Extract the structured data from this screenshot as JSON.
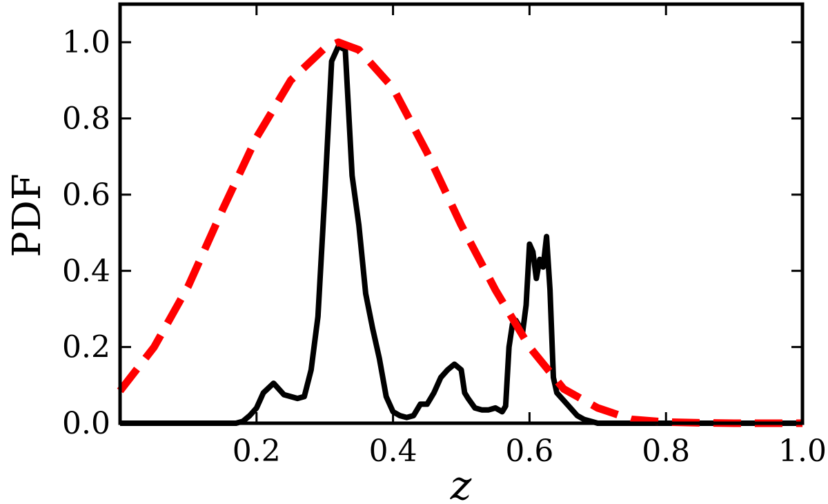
{
  "chart_data": {
    "type": "line",
    "title": "",
    "xlabel": "z",
    "ylabel": "PDF",
    "xlim": [
      0.0,
      1.0
    ],
    "ylim": [
      0.0,
      1.1
    ],
    "grid": false,
    "x_ticks": [
      0.2,
      0.4,
      0.6,
      0.8,
      1.0
    ],
    "x_tick_labels": [
      "0.2",
      "0.4",
      "0.6",
      "0.8",
      "1.0"
    ],
    "y_ticks": [
      0.0,
      0.2,
      0.4,
      0.6,
      0.8,
      1.0
    ],
    "y_tick_labels": [
      "0.0",
      "0.2",
      "0.4",
      "0.6",
      "0.8",
      "1.0"
    ],
    "series": [
      {
        "color": "#000000",
        "style": "solid",
        "x": [
          0.0,
          0.1,
          0.17,
          0.18,
          0.19,
          0.2,
          0.21,
          0.225,
          0.24,
          0.25,
          0.26,
          0.27,
          0.28,
          0.29,
          0.3,
          0.31,
          0.32,
          0.33,
          0.34,
          0.35,
          0.36,
          0.37,
          0.38,
          0.39,
          0.4,
          0.41,
          0.42,
          0.43,
          0.44,
          0.45,
          0.46,
          0.47,
          0.48,
          0.49,
          0.5,
          0.505,
          0.51,
          0.52,
          0.53,
          0.54,
          0.55,
          0.56,
          0.565,
          0.57,
          0.575,
          0.58,
          0.59,
          0.595,
          0.6,
          0.605,
          0.61,
          0.615,
          0.62,
          0.625,
          0.63,
          0.635,
          0.64,
          0.65,
          0.66,
          0.67,
          0.68,
          0.69,
          0.7,
          0.8,
          1.0
        ],
        "y": [
          0.0,
          0.0,
          0.0,
          0.005,
          0.02,
          0.04,
          0.08,
          0.105,
          0.075,
          0.07,
          0.065,
          0.07,
          0.14,
          0.28,
          0.6,
          0.95,
          0.99,
          0.98,
          0.65,
          0.52,
          0.34,
          0.25,
          0.17,
          0.07,
          0.03,
          0.02,
          0.015,
          0.02,
          0.05,
          0.05,
          0.08,
          0.12,
          0.14,
          0.155,
          0.14,
          0.08,
          0.065,
          0.04,
          0.035,
          0.035,
          0.04,
          0.03,
          0.045,
          0.2,
          0.26,
          0.27,
          0.24,
          0.31,
          0.47,
          0.45,
          0.38,
          0.43,
          0.41,
          0.49,
          0.35,
          0.12,
          0.08,
          0.06,
          0.04,
          0.02,
          0.01,
          0.005,
          0.0,
          0.0,
          0.0
        ]
      },
      {
        "color": "#ff0000",
        "style": "dashed",
        "x": [
          0.0,
          0.05,
          0.1,
          0.15,
          0.2,
          0.25,
          0.3,
          0.32,
          0.35,
          0.4,
          0.45,
          0.5,
          0.55,
          0.6,
          0.65,
          0.7,
          0.75,
          0.8,
          0.85,
          0.9,
          0.95,
          1.0
        ],
        "y": [
          0.085,
          0.2,
          0.36,
          0.56,
          0.75,
          0.9,
          0.985,
          1.0,
          0.98,
          0.88,
          0.71,
          0.52,
          0.35,
          0.2,
          0.09,
          0.04,
          0.01,
          0.003,
          0.001,
          0.0,
          0.0,
          0.0
        ]
      }
    ]
  }
}
